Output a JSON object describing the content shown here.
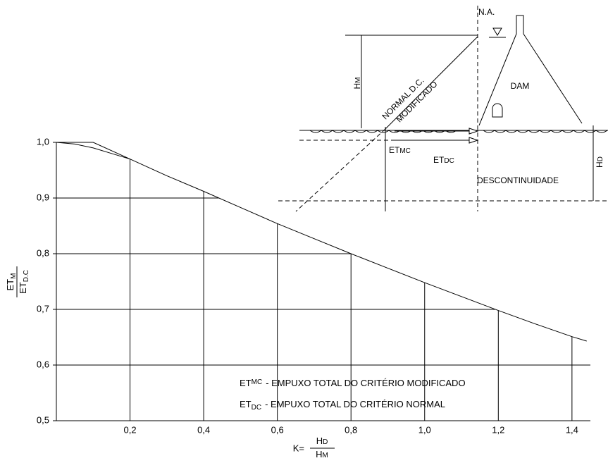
{
  "chart_data": {
    "type": "line",
    "x_label": {
      "prefix": "K=",
      "numerator": [
        "H",
        "D"
      ],
      "denominator": [
        "H",
        "M"
      ]
    },
    "y_label": {
      "numerator": [
        "ET",
        "M"
      ],
      "denominator": [
        "ET",
        "D.C"
      ]
    },
    "series": [
      {
        "color": "#000000",
        "x": [
          0,
          0.05,
          0.1,
          0.15,
          0.2,
          0.3,
          0.4,
          0.5,
          0.6,
          0.7,
          0.8,
          0.9,
          1.0,
          1.1,
          1.2,
          1.3,
          1.4,
          1.44
        ],
        "values": [
          1.0,
          0.997,
          0.99,
          0.98,
          0.97,
          0.94,
          0.912,
          0.883,
          0.854,
          0.827,
          0.8,
          0.774,
          0.748,
          0.723,
          0.698,
          0.674,
          0.651,
          0.643
        ]
      },
      {
        "color": "#000000",
        "x": [
          0,
          0.1,
          0.2
        ],
        "values": [
          1.0,
          1.0,
          0.97
        ]
      }
    ],
    "xlim": [
      0,
      1.45
    ],
    "ylim": [
      0.5,
      1.0
    ],
    "xticks": [
      {
        "value": 0.2,
        "label": "0,2"
      },
      {
        "value": 0.4,
        "label": "0,4"
      },
      {
        "value": 0.6,
        "label": "0,6"
      },
      {
        "value": 0.8,
        "label": "0,8"
      },
      {
        "value": 1.0,
        "label": "1,0"
      },
      {
        "value": 1.2,
        "label": "1,2"
      },
      {
        "value": 1.4,
        "label": "1,4"
      }
    ],
    "yticks": [
      {
        "value": 0.5,
        "label": "0,5"
      },
      {
        "value": 0.6,
        "label": "0,6"
      },
      {
        "value": 0.7,
        "label": "0,7"
      },
      {
        "value": 0.8,
        "label": "0,8"
      },
      {
        "value": 0.9,
        "label": "0,9"
      },
      {
        "value": 1.0,
        "label": "1,0"
      }
    ],
    "grid": true,
    "notes": [
      {
        "symbol": "ET",
        "sub": "MC",
        "text": "- EMPUXO TOTAL DO CRITÉRIO MODIFICADO"
      },
      {
        "symbol": "ET",
        "sub": "DC",
        "text": "- EMPUXO TOTAL DO CRITÉRIO NORMAL"
      }
    ]
  },
  "diagram": {
    "water_level": "N.A.",
    "dam": "DAM",
    "hm": [
      "H",
      "M"
    ],
    "normal": "NORMAL D.C.",
    "modified": "MODIFICADO",
    "et_mc": [
      "ET",
      "MC"
    ],
    "et_dc": [
      "ET",
      "DC"
    ],
    "hd": [
      "H",
      "D"
    ],
    "discontinuity": "DESCONTINUIDADE"
  }
}
